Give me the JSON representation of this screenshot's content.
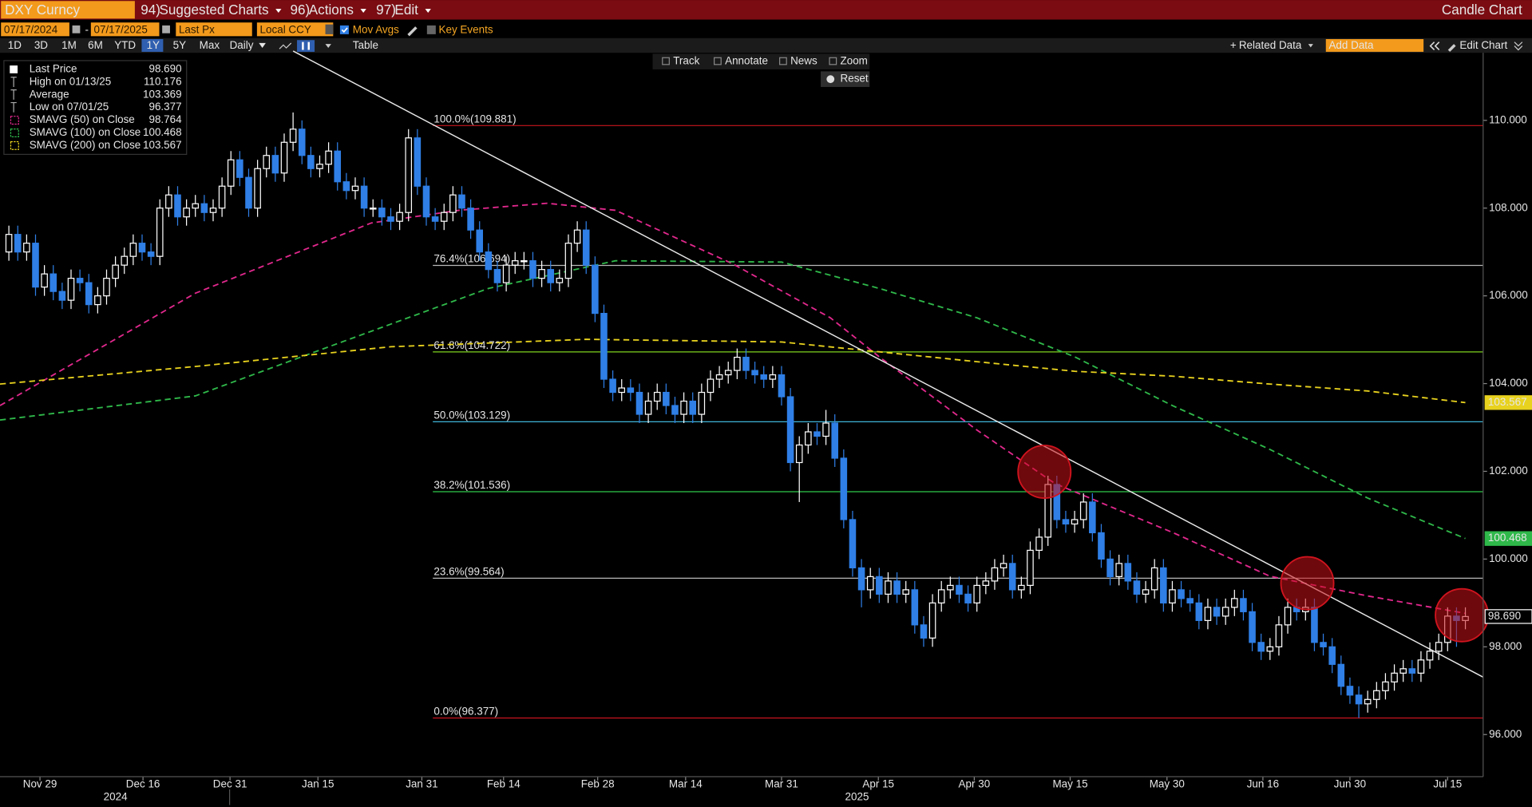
{
  "ui": {
    "ticker": "DXY Curncy",
    "menus": [
      {
        "num": "94)",
        "label": "Suggested Charts"
      },
      {
        "num": "96)",
        "label": "Actions"
      },
      {
        "num": "97)",
        "label": "Edit"
      }
    ],
    "chart_kind": "Candle Chart",
    "start_date": "07/17/2024",
    "date_sep": "-",
    "end_date": "07/17/2025",
    "field": "Last Px",
    "currency": "Local CCY",
    "mov_avgs": "Mov Avgs",
    "key_events": "Key Events",
    "ranges": [
      "1D",
      "3D",
      "1M",
      "6M",
      "YTD",
      "1Y",
      "5Y",
      "Max"
    ],
    "period": "Daily",
    "table": "Table",
    "related": "Related Data",
    "add_data": "Add Data",
    "edit_chart": "Edit Chart",
    "tools": [
      "Track",
      "Annotate",
      "News",
      "Zoom"
    ],
    "reset": "Reset"
  },
  "chart_data": {
    "type": "candlestick",
    "xlim": [
      -1,
      166
    ],
    "ylim": [
      95.04,
      111.54
    ],
    "xticks": [
      {
        "value": 3.5,
        "label": "Nov 29"
      },
      {
        "value": 15.1,
        "label": "Dec 16"
      },
      {
        "value": 24.9,
        "label": "Dec 31"
      },
      {
        "value": 34.8,
        "label": "Jan 15"
      },
      {
        "value": 46.5,
        "label": "Jan 31"
      },
      {
        "value": 55.7,
        "label": "Feb 14"
      },
      {
        "value": 66.3,
        "label": "Feb 28"
      },
      {
        "value": 76.2,
        "label": "Mar 14"
      },
      {
        "value": 87.0,
        "label": "Mar 31"
      },
      {
        "value": 97.9,
        "label": "Apr 15"
      },
      {
        "value": 108.7,
        "label": "Apr 30"
      },
      {
        "value": 119.5,
        "label": "May 15"
      },
      {
        "value": 130.4,
        "label": "May 30"
      },
      {
        "value": 141.2,
        "label": "Jun 16"
      },
      {
        "value": 151.0,
        "label": "Jun 30"
      },
      {
        "value": 162.0,
        "label": "Jul 15"
      }
    ],
    "year_labels": [
      {
        "value": 12,
        "label": "2024"
      },
      {
        "value": 95.5,
        "label": "2025"
      }
    ],
    "yticks": [
      {
        "value": 96,
        "label": "96.000"
      },
      {
        "value": 98,
        "label": "98.000"
      },
      {
        "value": 100,
        "label": "100.000"
      },
      {
        "value": 102,
        "label": "102.000"
      },
      {
        "value": 104,
        "label": "104.000"
      },
      {
        "value": 106,
        "label": "106.000"
      },
      {
        "value": 108,
        "label": "108.000"
      },
      {
        "value": 110,
        "label": "110.000"
      }
    ],
    "up_color": "#ffffff",
    "down_color": "#2f7fe6",
    "open": [
      107.0,
      107.4,
      107.0,
      107.2,
      106.2,
      106.5,
      106.1,
      105.9,
      106.4,
      106.3,
      105.8,
      106.0,
      106.4,
      106.7,
      106.9,
      107.2,
      107.0,
      106.9,
      108.0,
      108.3,
      107.8,
      108.0,
      108.1,
      107.9,
      108.0,
      108.5,
      109.1,
      108.7,
      108.0,
      108.9,
      109.2,
      108.8,
      109.5,
      109.8,
      109.2,
      108.9,
      109.0,
      109.3,
      108.6,
      108.4,
      108.5,
      108.0,
      108.0,
      107.8,
      107.7,
      107.9,
      109.6,
      108.5,
      107.8,
      107.7,
      107.9,
      108.3,
      108.0,
      107.5,
      107.0,
      106.6,
      106.3,
      106.7,
      106.8,
      106.8,
      106.4,
      106.6,
      106.3,
      106.4,
      107.2,
      107.5,
      106.7,
      105.6,
      104.1,
      103.8,
      103.9,
      103.8,
      103.3,
      103.6,
      103.8,
      103.5,
      103.3,
      103.6,
      103.3,
      103.8,
      104.1,
      104.2,
      104.3,
      104.6,
      104.3,
      104.2,
      104.1,
      104.2,
      103.7,
      102.2,
      102.6,
      102.9,
      102.8,
      103.1,
      102.3,
      100.9,
      99.8,
      99.3,
      99.6,
      99.2,
      99.5,
      99.2,
      99.3,
      98.5,
      98.2,
      99.0,
      99.3,
      99.4,
      99.2,
      99.0,
      99.4,
      99.5,
      99.8,
      99.9,
      99.3,
      99.4,
      100.2,
      100.5,
      101.7,
      100.9,
      100.8,
      100.9,
      101.3,
      100.6,
      100.0,
      99.6,
      99.9,
      99.5,
      99.2,
      99.3,
      99.8,
      99.0,
      99.3,
      99.1,
      99.0,
      98.6,
      98.9,
      98.7,
      98.9,
      99.1,
      98.8,
      98.1,
      97.9,
      98.0,
      98.5,
      98.9,
      98.8,
      98.9,
      98.1,
      98.0,
      97.6,
      97.1,
      96.9,
      96.7,
      96.8,
      97.0,
      97.2,
      97.4,
      97.5,
      97.4,
      97.7,
      97.9,
      98.1,
      98.7,
      98.6
    ],
    "high": [
      107.6,
      107.6,
      107.4,
      107.4,
      106.7,
      106.7,
      106.3,
      106.6,
      106.6,
      106.5,
      106.2,
      106.6,
      106.9,
      107.1,
      107.4,
      107.4,
      107.2,
      108.2,
      108.5,
      108.5,
      108.2,
      108.3,
      108.3,
      108.2,
      108.7,
      109.3,
      109.3,
      108.9,
      109.1,
      109.4,
      109.4,
      109.7,
      110.18,
      110.0,
      109.4,
      109.2,
      109.5,
      109.5,
      108.8,
      108.7,
      108.7,
      108.2,
      108.2,
      108.0,
      108.1,
      109.8,
      109.8,
      108.7,
      108.0,
      108.1,
      108.5,
      108.5,
      108.2,
      107.7,
      107.2,
      106.8,
      106.9,
      107.0,
      107.0,
      107.0,
      106.8,
      106.8,
      106.6,
      107.4,
      107.7,
      107.7,
      106.9,
      105.8,
      104.3,
      104.1,
      104.1,
      104.0,
      103.8,
      104.0,
      104.0,
      103.7,
      103.8,
      103.8,
      104.0,
      104.3,
      104.4,
      104.5,
      104.8,
      104.8,
      104.5,
      104.4,
      104.4,
      104.4,
      103.9,
      102.8,
      103.1,
      103.1,
      103.4,
      103.3,
      102.5,
      101.1,
      100.0,
      99.8,
      99.8,
      99.7,
      99.7,
      99.5,
      99.5,
      98.7,
      99.2,
      99.5,
      99.6,
      99.6,
      99.4,
      99.6,
      99.7,
      100.0,
      100.1,
      100.1,
      99.6,
      100.4,
      100.7,
      101.9,
      101.9,
      101.1,
      101.1,
      101.5,
      101.5,
      100.8,
      100.2,
      100.1,
      100.1,
      99.7,
      99.5,
      100.0,
      100.0,
      99.5,
      99.5,
      99.3,
      99.2,
      99.1,
      99.1,
      99.1,
      99.3,
      99.3,
      99.0,
      98.3,
      98.2,
      98.7,
      99.1,
      99.1,
      99.1,
      99.1,
      98.3,
      98.2,
      97.8,
      97.3,
      97.1,
      97.0,
      97.2,
      97.4,
      97.6,
      97.7,
      97.7,
      97.9,
      98.1,
      98.3,
      98.9,
      98.9,
      98.9
    ],
    "low": [
      106.8,
      106.8,
      106.8,
      106.0,
      106.0,
      105.9,
      105.7,
      105.7,
      106.1,
      105.6,
      105.6,
      105.8,
      106.2,
      106.5,
      106.7,
      106.8,
      106.7,
      106.7,
      107.8,
      107.6,
      107.6,
      107.8,
      107.7,
      107.7,
      107.8,
      108.3,
      108.5,
      107.8,
      107.8,
      108.7,
      108.6,
      108.6,
      109.3,
      109.0,
      108.7,
      108.7,
      108.8,
      108.4,
      108.2,
      108.2,
      107.8,
      107.8,
      107.6,
      107.5,
      107.5,
      107.7,
      108.3,
      107.6,
      107.5,
      107.5,
      107.7,
      107.8,
      107.3,
      106.8,
      106.4,
      106.1,
      106.1,
      106.5,
      106.6,
      106.2,
      106.2,
      106.1,
      106.1,
      106.2,
      107.0,
      106.5,
      105.4,
      103.9,
      103.6,
      103.6,
      103.6,
      103.1,
      103.1,
      103.4,
      103.3,
      103.1,
      103.1,
      103.1,
      103.1,
      103.6,
      103.9,
      104.0,
      104.1,
      104.1,
      104.0,
      103.9,
      103.9,
      103.5,
      102.0,
      101.3,
      102.4,
      102.6,
      102.6,
      102.1,
      100.7,
      99.6,
      98.9,
      99.1,
      99.0,
      99.0,
      99.0,
      99.0,
      98.3,
      98.0,
      98.0,
      98.8,
      99.1,
      99.0,
      98.8,
      98.8,
      99.2,
      99.3,
      99.6,
      99.1,
      99.1,
      99.2,
      100.0,
      100.3,
      100.7,
      100.6,
      100.6,
      100.7,
      100.4,
      99.8,
      99.4,
      99.4,
      99.3,
      99.0,
      99.0,
      99.1,
      98.8,
      98.8,
      98.9,
      98.8,
      98.4,
      98.4,
      98.5,
      98.5,
      98.7,
      98.6,
      97.9,
      97.7,
      97.7,
      97.8,
      98.3,
      98.6,
      98.6,
      97.9,
      97.8,
      97.4,
      96.9,
      96.7,
      96.38,
      96.5,
      96.6,
      96.8,
      97.0,
      97.2,
      97.2,
      97.2,
      97.5,
      97.7,
      97.9,
      98.0,
      98.4
    ],
    "close": [
      107.4,
      107.0,
      107.2,
      106.2,
      106.5,
      106.1,
      105.9,
      106.4,
      106.3,
      105.8,
      106.0,
      106.4,
      106.7,
      106.9,
      107.2,
      107.0,
      106.9,
      108.0,
      108.3,
      107.8,
      108.0,
      108.1,
      107.9,
      108.0,
      108.5,
      109.1,
      108.7,
      108.0,
      108.9,
      109.2,
      108.8,
      109.5,
      109.8,
      109.2,
      108.9,
      109.0,
      109.3,
      108.6,
      108.4,
      108.5,
      108.0,
      108.0,
      107.8,
      107.7,
      107.9,
      109.6,
      108.5,
      107.8,
      107.7,
      107.9,
      108.3,
      108.0,
      107.5,
      107.0,
      106.6,
      106.3,
      106.7,
      106.8,
      106.8,
      106.4,
      106.6,
      106.3,
      106.4,
      107.2,
      107.5,
      106.7,
      105.6,
      104.1,
      103.8,
      103.9,
      103.8,
      103.3,
      103.6,
      103.8,
      103.5,
      103.3,
      103.6,
      103.3,
      103.8,
      104.1,
      104.2,
      104.3,
      104.6,
      104.3,
      104.2,
      104.1,
      104.2,
      103.7,
      102.2,
      102.6,
      102.9,
      102.8,
      103.1,
      102.3,
      100.9,
      99.8,
      99.3,
      99.6,
      99.2,
      99.5,
      99.2,
      99.3,
      98.5,
      98.2,
      99.0,
      99.3,
      99.4,
      99.2,
      99.0,
      99.4,
      99.5,
      99.8,
      99.9,
      99.3,
      99.4,
      100.2,
      100.5,
      101.7,
      100.9,
      100.8,
      100.9,
      101.3,
      100.6,
      100.0,
      99.6,
      99.9,
      99.5,
      99.2,
      99.3,
      99.8,
      99.0,
      99.3,
      99.1,
      99.0,
      98.6,
      98.9,
      98.7,
      98.9,
      99.1,
      98.8,
      98.1,
      97.9,
      98.0,
      98.5,
      98.9,
      98.8,
      98.9,
      98.1,
      98.0,
      97.6,
      97.1,
      96.9,
      96.7,
      96.8,
      97.0,
      97.2,
      97.4,
      97.5,
      97.4,
      97.7,
      97.9,
      98.1,
      98.7,
      98.6,
      98.69
    ],
    "legend": [
      {
        "name": "Last Price",
        "value": "98.690"
      },
      {
        "name": "High on 01/13/25",
        "value": "110.176"
      },
      {
        "name": "Average",
        "value": "103.369"
      },
      {
        "name": "Low on 07/01/25",
        "value": "96.377"
      }
    ],
    "series": [
      {
        "name": "SMAVG (50) on Close",
        "color": "#e0288c",
        "last_label": "98.764",
        "x": [
          -1,
          21,
          40.8,
          50.7,
          60.6,
          68.3,
          81.5,
          92.5,
          98,
          109,
          117.8,
          131,
          142,
          153,
          164
        ],
        "values": [
          103.5,
          106.06,
          107.66,
          107.95,
          108.11,
          107.95,
          106.73,
          105.5,
          104.61,
          102.94,
          101.72,
          100.61,
          99.61,
          99.16,
          98.764
        ]
      },
      {
        "name": "SMAVG (100) on Close",
        "color": "#2fb84a",
        "last_label": "100.468",
        "x": [
          -1,
          21,
          37.5,
          54,
          68.3,
          87,
          98,
          109,
          120,
          131,
          142,
          153,
          164
        ],
        "values": [
          103.17,
          103.72,
          104.95,
          106.17,
          106.8,
          106.77,
          106.17,
          105.5,
          104.61,
          103.5,
          102.5,
          101.39,
          100.468
        ]
      },
      {
        "name": "SMAVG (200) on Close",
        "color": "#e8d21e",
        "last_label": "103.567",
        "x": [
          -1,
          21,
          43,
          65,
          87,
          109,
          120,
          131,
          142,
          153,
          164
        ],
        "values": [
          103.99,
          104.39,
          104.84,
          105.01,
          104.95,
          104.5,
          104.28,
          104.17,
          103.99,
          103.83,
          103.567
        ]
      }
    ],
    "levels": [
      {
        "value": 109.881,
        "label": "100.0%(109.881)",
        "color": "#c8141e"
      },
      {
        "value": 106.694,
        "label": "76.4%(106.694)",
        "color": "#b8b8b8"
      },
      {
        "value": 104.722,
        "label": "61.8%(104.722)",
        "color": "#7ed321"
      },
      {
        "value": 103.129,
        "label": "50.0%(103.129)",
        "color": "#3fb4d8"
      },
      {
        "value": 101.536,
        "label": "38.2%(101.536)",
        "color": "#2fc84a"
      },
      {
        "value": 99.564,
        "label": "23.6%(99.564)",
        "color": "#b8b8b8"
      },
      {
        "value": 96.377,
        "label": "0.0%(96.377)",
        "color": "#c8141e"
      }
    ],
    "trendline": {
      "x": [
        32,
        166
      ],
      "values": [
        111.58,
        97.31
      ]
    },
    "highlights": {
      "x": [
        116.6,
        146.2,
        163.6
      ],
      "values": [
        101.99,
        99.45,
        98.72
      ]
    }
  }
}
